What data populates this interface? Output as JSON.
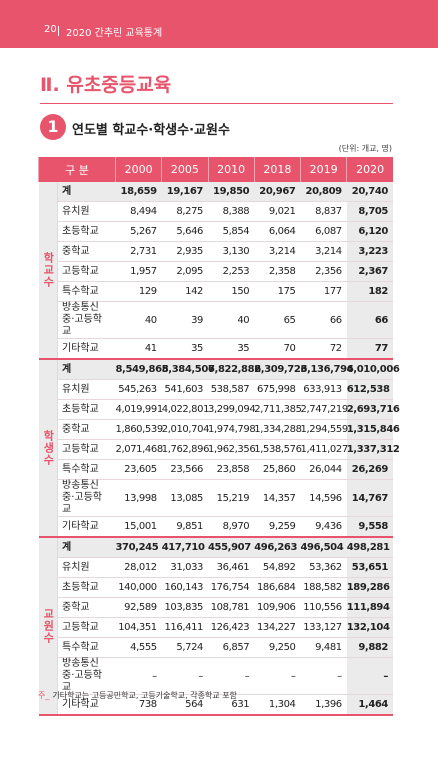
{
  "header": {
    "page": "20",
    "title": "2020 간추린 교육통계"
  },
  "section": {
    "title": "Ⅱ. 유초중등교육"
  },
  "subsection": {
    "number": "1",
    "title": "연도별 학교수·학생수·교원수"
  },
  "table": {
    "unit": "(단위: 개교, 명)",
    "columns": [
      "구 분",
      "2000",
      "2005",
      "2010",
      "2018",
      "2019",
      "2020"
    ],
    "groups": [
      {
        "label": "학교수",
        "rows": [
          [
            "계",
            "18,659",
            "19,167",
            "19,850",
            "20,967",
            "20,809",
            "20,740"
          ],
          [
            "유치원",
            "8,494",
            "8,275",
            "8,388",
            "9,021",
            "8,837",
            "8,705"
          ],
          [
            "초등학교",
            "5,267",
            "5,646",
            "5,854",
            "6,064",
            "6,087",
            "6,120"
          ],
          [
            "중학교",
            "2,731",
            "2,935",
            "3,130",
            "3,214",
            "3,214",
            "3,223"
          ],
          [
            "고등학교",
            "1,957",
            "2,095",
            "2,253",
            "2,358",
            "2,356",
            "2,367"
          ],
          [
            "특수학교",
            "129",
            "142",
            "150",
            "175",
            "177",
            "182"
          ],
          [
            "방송통신\n중·고등학교",
            "40",
            "39",
            "40",
            "65",
            "66",
            "66"
          ],
          [
            "기타학교",
            "41",
            "35",
            "35",
            "70",
            "72",
            "77"
          ]
        ]
      },
      {
        "label": "학생수",
        "rows": [
          [
            "계",
            "8,549,865",
            "8,384,506",
            "7,822,882",
            "6,309,723",
            "6,136,794",
            "6,010,006"
          ],
          [
            "유치원",
            "545,263",
            "541,603",
            "538,587",
            "675,998",
            "633,913",
            "612,538"
          ],
          [
            "초등학교",
            "4,019,991",
            "4,022,801",
            "3,299,094",
            "2,711,385",
            "2,747,219",
            "2,693,716"
          ],
          [
            "중학교",
            "1,860,539",
            "2,010,704",
            "1,974,798",
            "1,334,288",
            "1,294,559",
            "1,315,846"
          ],
          [
            "고등학교",
            "2,071,468",
            "1,762,896",
            "1,962,356",
            "1,538,576",
            "1,411,027",
            "1,337,312"
          ],
          [
            "특수학교",
            "23,605",
            "23,566",
            "23,858",
            "25,860",
            "26,044",
            "26,269"
          ],
          [
            "방송통신\n중·고등학교",
            "13,998",
            "13,085",
            "15,219",
            "14,357",
            "14,596",
            "14,767"
          ],
          [
            "기타학교",
            "15,001",
            "9,851",
            "8,970",
            "9,259",
            "9,436",
            "9,558"
          ]
        ]
      },
      {
        "label": "교원수",
        "rows": [
          [
            "계",
            "370,245",
            "417,710",
            "455,907",
            "496,263",
            "496,504",
            "498,281"
          ],
          [
            "유치원",
            "28,012",
            "31,033",
            "36,461",
            "54,892",
            "53,362",
            "53,651"
          ],
          [
            "초등학교",
            "140,000",
            "160,143",
            "176,754",
            "186,684",
            "188,582",
            "189,286"
          ],
          [
            "중학교",
            "92,589",
            "103,835",
            "108,781",
            "109,906",
            "110,556",
            "111,894"
          ],
          [
            "고등학교",
            "104,351",
            "116,411",
            "126,423",
            "134,227",
            "133,127",
            "132,104"
          ],
          [
            "특수학교",
            "4,555",
            "5,724",
            "6,857",
            "9,250",
            "9,481",
            "9,882"
          ],
          [
            "방송통신\n중·고등학교",
            "–",
            "–",
            "–",
            "–",
            "–",
            "–"
          ],
          [
            "기타학교",
            "738",
            "564",
            "631",
            "1,304",
            "1,396",
            "1,464"
          ]
        ]
      }
    ]
  },
  "note": {
    "prefix": "주_",
    "text": "기타학교는 고등공민학교, 고등기술학교, 각종학교 포함"
  }
}
